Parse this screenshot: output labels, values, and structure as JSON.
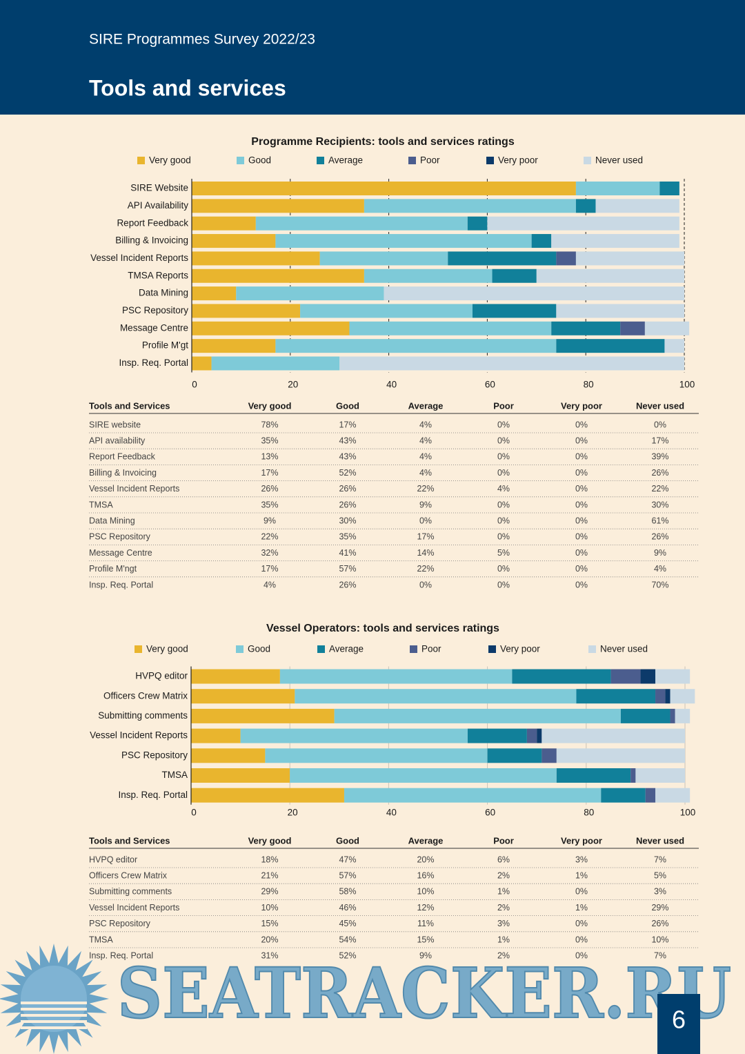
{
  "header": {
    "subtitle": "SIRE Programmes Survey 2022/23",
    "title": "Tools and services"
  },
  "chart_data": [
    {
      "type": "stacked-bar-horizontal",
      "title": "Programme Recipients: tools and services ratings",
      "categories": [
        "SIRE Website",
        "API Availability",
        "Report Feedback",
        "Billing & Invoicing",
        "Vessel Incident Reports",
        "TMSA Reports",
        "Data Mining",
        "PSC Repository",
        "Message Centre",
        "Profile M'gt",
        "Insp. Req. Portal"
      ],
      "series": [
        {
          "name": "Very good",
          "color": "#e9b52e",
          "values": [
            78,
            35,
            13,
            17,
            26,
            35,
            9,
            22,
            32,
            17,
            4
          ]
        },
        {
          "name": "Good",
          "color": "#7ecad8",
          "values": [
            17,
            43,
            43,
            52,
            26,
            26,
            30,
            35,
            41,
            57,
            26
          ]
        },
        {
          "name": "Average",
          "color": "#11809a",
          "values": [
            4,
            4,
            4,
            4,
            22,
            9,
            0,
            17,
            14,
            22,
            0
          ]
        },
        {
          "name": "Poor",
          "color": "#4b5d8e",
          "values": [
            0,
            0,
            0,
            0,
            4,
            0,
            0,
            0,
            5,
            0,
            0
          ]
        },
        {
          "name": "Very poor",
          "color": "#0c3a6a",
          "values": [
            0,
            0,
            0,
            0,
            0,
            0,
            0,
            0,
            0,
            0,
            0
          ]
        },
        {
          "name": "Never used",
          "color": "#c9d9e4",
          "values": [
            0,
            17,
            39,
            26,
            22,
            30,
            61,
            26,
            9,
            4,
            70
          ]
        }
      ],
      "xlim": [
        0,
        100
      ],
      "xticks": [
        0,
        20,
        40,
        60,
        80,
        100
      ],
      "grid": true
    },
    {
      "type": "stacked-bar-horizontal",
      "title": "Vessel Operators: tools and services ratings",
      "categories": [
        "HVPQ editor",
        "Officers Crew Matrix",
        "Submitting comments",
        "Vessel Incident Reports",
        "PSC Repository",
        "TMSA",
        "Insp. Req. Portal"
      ],
      "series": [
        {
          "name": "Very good",
          "color": "#e9b52e",
          "values": [
            18,
            21,
            29,
            10,
            15,
            20,
            31
          ]
        },
        {
          "name": "Good",
          "color": "#7ecad8",
          "values": [
            47,
            57,
            58,
            46,
            45,
            54,
            52
          ]
        },
        {
          "name": "Average",
          "color": "#11809a",
          "values": [
            20,
            16,
            10,
            12,
            11,
            15,
            9
          ]
        },
        {
          "name": "Poor",
          "color": "#4b5d8e",
          "values": [
            6,
            2,
            1,
            2,
            3,
            1,
            2
          ]
        },
        {
          "name": "Very poor",
          "color": "#0c3a6a",
          "values": [
            3,
            1,
            0,
            1,
            0,
            0,
            0
          ]
        },
        {
          "name": "Never used",
          "color": "#c9d9e4",
          "values": [
            7,
            5,
            3,
            29,
            26,
            10,
            7
          ]
        }
      ],
      "xlim": [
        0,
        100
      ],
      "xticks": [
        0,
        20,
        40,
        60,
        80,
        100
      ],
      "grid": true
    }
  ],
  "tables": [
    {
      "columns": [
        "Tools and Services",
        "Very good",
        "Good",
        "Average",
        "Poor",
        "Very poor",
        "Never used"
      ],
      "rows": [
        [
          "SIRE website",
          "78%",
          "17%",
          "4%",
          "0%",
          "0%",
          "0%"
        ],
        [
          "API availability",
          "35%",
          "43%",
          "4%",
          "0%",
          "0%",
          "17%"
        ],
        [
          "Report Feedback",
          "13%",
          "43%",
          "4%",
          "0%",
          "0%",
          "39%"
        ],
        [
          "Billing & Invoicing",
          "17%",
          "52%",
          "4%",
          "0%",
          "0%",
          "26%"
        ],
        [
          "Vessel Incident Reports",
          "26%",
          "26%",
          "22%",
          "4%",
          "0%",
          "22%"
        ],
        [
          "TMSA",
          "35%",
          "26%",
          "9%",
          "0%",
          "0%",
          "30%"
        ],
        [
          "Data Mining",
          "9%",
          "30%",
          "0%",
          "0%",
          "0%",
          "61%"
        ],
        [
          "PSC Repository",
          "22%",
          "35%",
          "17%",
          "0%",
          "0%",
          "26%"
        ],
        [
          "Message Centre",
          "32%",
          "41%",
          "14%",
          "5%",
          "0%",
          "9%"
        ],
        [
          "Profile M'ngt",
          "17%",
          "57%",
          "22%",
          "0%",
          "0%",
          "4%"
        ],
        [
          "Insp. Req. Portal",
          "4%",
          "26%",
          "0%",
          "0%",
          "0%",
          "70%"
        ]
      ]
    },
    {
      "columns": [
        "Tools and Services",
        "Very good",
        "Good",
        "Average",
        "Poor",
        "Very poor",
        "Never used"
      ],
      "rows": [
        [
          "HVPQ editor",
          "18%",
          "47%",
          "20%",
          "6%",
          "3%",
          "7%"
        ],
        [
          "Officers Crew Matrix",
          "21%",
          "57%",
          "16%",
          "2%",
          "1%",
          "5%"
        ],
        [
          "Submitting comments",
          "29%",
          "58%",
          "10%",
          "1%",
          "0%",
          "3%"
        ],
        [
          "Vessel Incident Reports",
          "10%",
          "46%",
          "12%",
          "2%",
          "1%",
          "29%"
        ],
        [
          "PSC Repository",
          "15%",
          "45%",
          "11%",
          "3%",
          "0%",
          "26%"
        ],
        [
          "TMSA",
          "20%",
          "54%",
          "15%",
          "1%",
          "0%",
          "10%"
        ],
        [
          "Insp. Req. Portal",
          "31%",
          "52%",
          "9%",
          "2%",
          "0%",
          "7%"
        ]
      ]
    }
  ],
  "watermark": "SEATRACKER.RU",
  "page_number": "6"
}
